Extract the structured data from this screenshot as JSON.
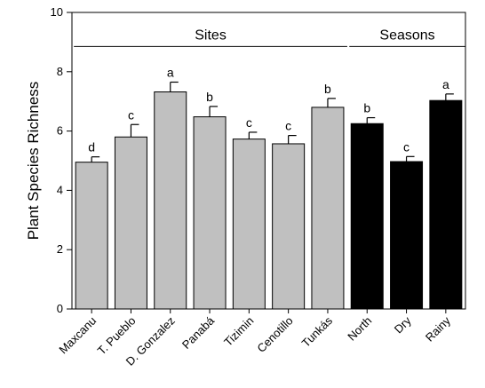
{
  "chart_data": {
    "type": "bar",
    "ylabel": "Plant Species Richness",
    "ylim": [
      0,
      10
    ],
    "yticks": [
      "0",
      "2",
      "4",
      "6",
      "8",
      "10"
    ],
    "grid": false,
    "categories": [
      "Maxcanu",
      "T. Pueblo",
      "D. Gonzalez",
      "Panabá",
      "Tizimin",
      "Cenotillo",
      "Tunkás",
      "North",
      "Dry",
      "Rainy"
    ],
    "values": [
      4.95,
      5.8,
      7.32,
      6.48,
      5.73,
      5.57,
      6.8,
      6.25,
      4.97,
      7.03
    ],
    "errors": [
      0.18,
      0.42,
      0.33,
      0.35,
      0.23,
      0.28,
      0.3,
      0.2,
      0.17,
      0.22
    ],
    "letters": [
      "d",
      "c",
      "a",
      "b",
      "c",
      "c",
      "b",
      "b",
      "c",
      "a"
    ],
    "groups": [
      {
        "label": "Sites",
        "first": 0,
        "last": 6,
        "color": "#c0c0c0"
      },
      {
        "label": "Seasons",
        "first": 7,
        "last": 9,
        "color": "#000000"
      }
    ]
  }
}
